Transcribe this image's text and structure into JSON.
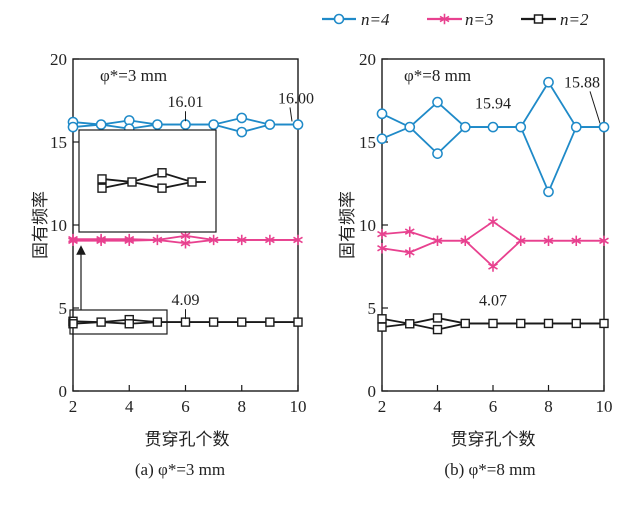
{
  "legend": [
    {
      "name": "n=4",
      "color": "#1f8ac8",
      "marker": "circle"
    },
    {
      "name": "n=3",
      "color": "#e8418f",
      "marker": "star"
    },
    {
      "name": "n=2",
      "color": "#1a1a1a",
      "marker": "square"
    }
  ],
  "chart_data": [
    {
      "type": "line",
      "title": "",
      "subtitle": "φ*=3 mm",
      "caption": "(a) φ*=3 mm",
      "xlabel": "贯穿孔个数",
      "ylabel": "固有频率",
      "xlim": [
        2,
        10
      ],
      "ylim": [
        0,
        20
      ],
      "xticks": [
        2,
        4,
        6,
        8,
        10
      ],
      "yticks": [
        0,
        5,
        10,
        15,
        20
      ],
      "x": [
        2,
        3,
        4,
        5,
        6,
        7,
        8,
        9,
        10
      ],
      "series": [
        {
          "name": "n=4",
          "color": "#1f8ac8",
          "marker": "circle",
          "upper": [
            16.2,
            16.05,
            16.3,
            16.05,
            16.05,
            16.05,
            16.45,
            16.05,
            16.05
          ],
          "lower": [
            15.9,
            16.05,
            15.8,
            16.05,
            16.05,
            16.05,
            15.6,
            16.05,
            16.05
          ]
        },
        {
          "name": "n=3",
          "color": "#e8418f",
          "marker": "star",
          "upper": [
            9.15,
            9.15,
            9.15,
            9.1,
            9.35,
            9.1,
            9.1,
            9.1,
            9.1
          ],
          "lower": [
            9.05,
            9.05,
            9.05,
            9.1,
            8.9,
            9.1,
            9.1,
            9.1,
            9.1
          ]
        },
        {
          "name": "n=2",
          "color": "#1a1a1a",
          "marker": "square",
          "upper": [
            4.2,
            4.15,
            4.3,
            4.15,
            4.15,
            4.15,
            4.15,
            4.15,
            4.15
          ],
          "lower": [
            4.05,
            4.15,
            4.05,
            4.15,
            4.15,
            4.15,
            4.15,
            4.15,
            4.15
          ]
        }
      ],
      "annotations": [
        {
          "text": "16.01",
          "x": 6,
          "y": 16.01
        },
        {
          "text": "16.00",
          "x": 10,
          "y": 16.0
        },
        {
          "text": "4.09",
          "x": 6,
          "y": 4.09
        }
      ],
      "inset": {
        "zoom_x": [
          2,
          5
        ],
        "zoom_y": [
          3.5,
          4.8
        ]
      }
    },
    {
      "type": "line",
      "title": "",
      "subtitle": "φ*=8 mm",
      "caption": "(b) φ*=8 mm",
      "xlabel": "贯穿孔个数",
      "ylabel": "固有频率",
      "xlim": [
        2,
        10
      ],
      "ylim": [
        0,
        20
      ],
      "xticks": [
        2,
        4,
        6,
        8,
        10
      ],
      "yticks": [
        0,
        5,
        10,
        15,
        20
      ],
      "x": [
        2,
        3,
        4,
        5,
        6,
        7,
        8,
        9,
        10
      ],
      "series": [
        {
          "name": "n=4",
          "color": "#1f8ac8",
          "marker": "circle",
          "upper": [
            16.7,
            15.9,
            17.4,
            15.9,
            15.9,
            15.9,
            18.6,
            15.9,
            15.9
          ],
          "lower": [
            15.2,
            15.9,
            14.3,
            15.9,
            15.9,
            15.9,
            12.0,
            15.9,
            15.9
          ]
        },
        {
          "name": "n=3",
          "color": "#e8418f",
          "marker": "star",
          "upper": [
            9.45,
            9.6,
            9.05,
            9.05,
            10.2,
            9.05,
            9.05,
            9.05,
            9.05
          ],
          "lower": [
            8.6,
            8.35,
            9.05,
            9.05,
            7.5,
            9.05,
            9.05,
            9.05,
            9.05
          ]
        },
        {
          "name": "n=2",
          "color": "#1a1a1a",
          "marker": "square",
          "upper": [
            4.35,
            4.05,
            4.4,
            4.07,
            4.07,
            4.07,
            4.07,
            4.07,
            4.07
          ],
          "lower": [
            3.85,
            4.05,
            3.7,
            4.07,
            4.07,
            4.07,
            4.07,
            4.07,
            4.07
          ]
        }
      ],
      "annotations": [
        {
          "text": "15.94",
          "x": 6,
          "y": 15.94
        },
        {
          "text": "15.88",
          "x": 10,
          "y": 15.88
        },
        {
          "text": "4.07",
          "x": 6,
          "y": 4.07
        }
      ]
    }
  ]
}
